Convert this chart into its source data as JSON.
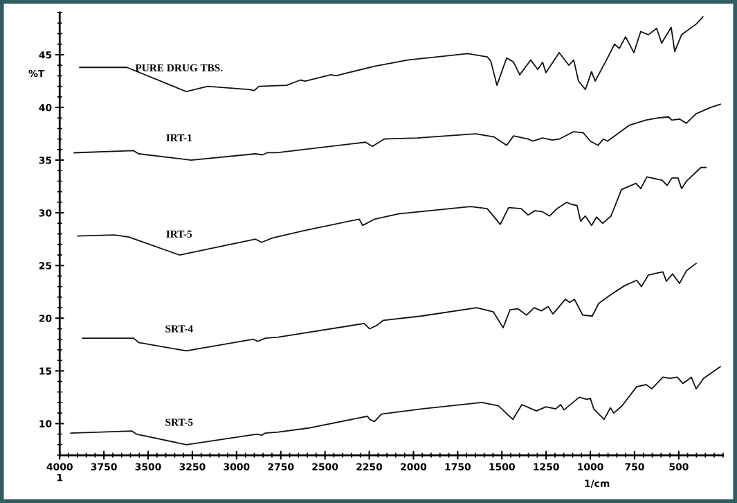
{
  "chart_data": {
    "type": "line",
    "xlabel": "1/cm",
    "ylabel": "%T",
    "xlim": [
      4000,
      250
    ],
    "xticks": [
      {
        "value": 4000,
        "label": "4000\n1"
      },
      3750,
      3500,
      3250,
      3000,
      2750,
      2500,
      2250,
      2000,
      1750,
      1500,
      1250,
      1000,
      750,
      500
    ],
    "ylim": [
      7,
      49
    ],
    "yticks": [
      10,
      15,
      20,
      25,
      30,
      35,
      40,
      45
    ],
    "grid": false,
    "legend": false,
    "marker": "none",
    "line_style": "solid",
    "series": [
      {
        "name": "PURE DRUG TBS.",
        "color": "#111111",
        "x": [
          3887,
          3620,
          3284,
          3163,
          2932,
          2900,
          2874,
          2717,
          2639,
          2612,
          2467,
          2436,
          2393,
          2220,
          2033,
          1693,
          1583,
          1563,
          1528,
          1473,
          1434,
          1399,
          1337,
          1297,
          1270,
          1251,
          1176,
          1121,
          1094,
          1067,
          1028,
          993,
          973,
          918,
          863,
          836,
          801,
          754,
          715,
          672,
          625,
          597,
          543,
          523,
          484,
          402,
          363
        ],
        "values": [
          43.8,
          43.8,
          41.5,
          42.0,
          41.7,
          41.6,
          42.0,
          42.1,
          42.6,
          42.5,
          43.1,
          43.0,
          43.2,
          43.9,
          44.5,
          45.1,
          44.8,
          44.4,
          42.1,
          44.7,
          44.3,
          43.1,
          44.5,
          43.6,
          44.3,
          43.3,
          45.2,
          44.0,
          44.5,
          42.5,
          41.7,
          43.4,
          42.5,
          44.2,
          46.0,
          45.6,
          46.7,
          45.2,
          47.2,
          46.9,
          47.5,
          46.1,
          47.6,
          45.3,
          46.9,
          47.9,
          48.6
        ]
      },
      {
        "name": "IRT-1",
        "color": "#111111",
        "x": [
          3918,
          3582,
          3554,
          3257,
          2893,
          2854,
          2827,
          2772,
          2271,
          2232,
          2166,
          1978,
          1649,
          1544,
          1473,
          1434,
          1352,
          1325,
          1270,
          1215,
          1176,
          1094,
          1040,
          1000,
          957,
          926,
          903,
          781,
          687,
          621,
          558,
          539,
          496,
          457,
          402,
          320,
          265
        ],
        "values": [
          35.7,
          35.9,
          35.6,
          35.0,
          35.6,
          35.5,
          35.7,
          35.7,
          36.7,
          36.3,
          37.0,
          37.1,
          37.5,
          37.2,
          36.4,
          37.3,
          37.0,
          36.8,
          37.1,
          36.9,
          37.0,
          37.7,
          37.6,
          36.8,
          36.4,
          37.0,
          36.8,
          38.3,
          38.8,
          39.0,
          39.1,
          38.8,
          38.9,
          38.5,
          39.4,
          40.0,
          40.3
        ]
      },
      {
        "name": "IRT-5",
        "color": "#111111",
        "x": [
          3898,
          3691,
          3609,
          3323,
          2893,
          2858,
          2799,
          2623,
          2307,
          2287,
          2220,
          2084,
          1677,
          1583,
          1509,
          1462,
          1391,
          1352,
          1313,
          1270,
          1231,
          1188,
          1133,
          1106,
          1075,
          1055,
          1028,
          993,
          965,
          930,
          883,
          824,
          742,
          715,
          680,
          594,
          566,
          539,
          504,
          484,
          457,
          375,
          347
        ],
        "values": [
          27.8,
          27.9,
          27.7,
          26.0,
          27.5,
          27.2,
          27.6,
          28.3,
          29.4,
          28.8,
          29.4,
          29.9,
          30.6,
          30.4,
          28.9,
          30.5,
          30.4,
          29.8,
          30.2,
          30.1,
          29.7,
          30.4,
          31.0,
          30.8,
          30.7,
          29.2,
          29.7,
          28.8,
          29.6,
          29.0,
          29.7,
          32.2,
          32.8,
          32.3,
          33.4,
          33.1,
          32.6,
          33.3,
          33.3,
          32.3,
          33.0,
          34.3,
          34.3
        ]
      },
      {
        "name": "SRT-4",
        "color": "#111111",
        "x": [
          3871,
          3582,
          3554,
          3284,
          2905,
          2881,
          2838,
          2764,
          2279,
          2248,
          2209,
          2170,
          1958,
          1642,
          1548,
          1493,
          1454,
          1411,
          1360,
          1317,
          1278,
          1239,
          1211,
          1141,
          1117,
          1090,
          1043,
          989,
          953,
          887,
          805,
          738,
          711,
          672,
          590,
          570,
          535,
          496,
          457,
          402
        ],
        "values": [
          18.1,
          18.1,
          17.7,
          16.9,
          18.0,
          17.8,
          18.1,
          18.2,
          19.5,
          19.0,
          19.3,
          19.8,
          20.2,
          21.0,
          20.6,
          19.1,
          20.8,
          20.9,
          20.3,
          21.0,
          20.7,
          21.1,
          20.4,
          21.8,
          21.5,
          21.8,
          20.3,
          20.2,
          21.4,
          22.2,
          23.1,
          23.6,
          23.0,
          24.1,
          24.4,
          23.5,
          24.2,
          23.3,
          24.5,
          25.2
        ]
      },
      {
        "name": "SRT-5",
        "color": "#111111",
        "x": [
          3937,
          3593,
          3566,
          3284,
          2885,
          2858,
          2838,
          2764,
          2584,
          2260,
          2248,
          2220,
          2181,
          1951,
          1614,
          1520,
          1438,
          1387,
          1305,
          1251,
          1196,
          1168,
          1149,
          1063,
          1020,
          1000,
          981,
          922,
          887,
          867,
          820,
          738,
          684,
          652,
          590,
          551,
          508,
          476,
          429,
          402,
          359,
          265
        ],
        "values": [
          9.1,
          9.3,
          9.0,
          8.0,
          9.0,
          8.9,
          9.1,
          9.2,
          9.6,
          10.7,
          10.4,
          10.2,
          10.9,
          11.4,
          12.0,
          11.7,
          10.4,
          11.8,
          11.2,
          11.6,
          11.4,
          11.8,
          11.3,
          12.5,
          12.3,
          12.4,
          11.4,
          10.4,
          11.5,
          11.0,
          11.7,
          13.5,
          13.7,
          13.3,
          14.4,
          14.3,
          14.4,
          13.8,
          14.4,
          13.3,
          14.3,
          15.4
        ]
      }
    ]
  }
}
